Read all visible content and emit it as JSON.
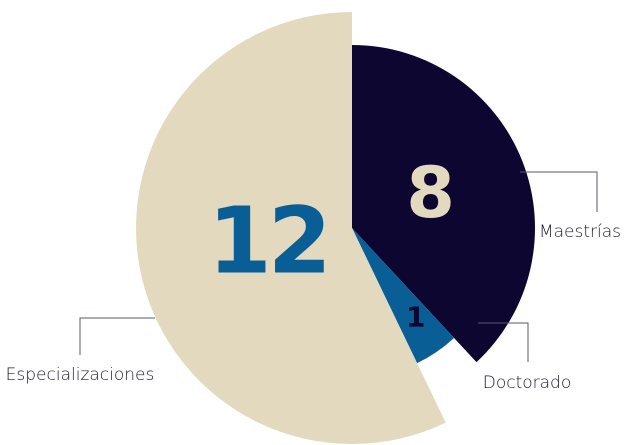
{
  "chart_data": {
    "type": "pie",
    "categories": [
      "Maestrías",
      "Doctorado",
      "Especializaciones"
    ],
    "values": [
      8,
      1,
      12
    ],
    "colors": [
      "#0d0630",
      "#0a5e96",
      "#e2d9bf"
    ]
  }
}
